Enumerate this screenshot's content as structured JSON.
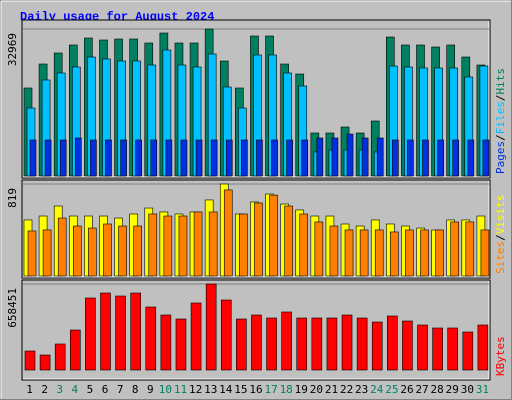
{
  "title": "Daily usage for August 2024",
  "legend_separator": "/",
  "chart_data": [
    {
      "type": "bar",
      "ylim": [
        0,
        32969
      ],
      "yticks": [
        32969
      ],
      "series": [
        {
          "name": "Pages",
          "color": "#0030e0",
          "values": [
            8074,
            8074,
            8074,
            8522,
            8074,
            8074,
            8074,
            8074,
            8074,
            8074,
            8074,
            8074,
            8074,
            8074,
            8074,
            8074,
            8074,
            8074,
            8074,
            8522,
            8522,
            9419,
            8522,
            8522,
            8074,
            8074,
            8074,
            8074,
            8074,
            8074,
            8074
          ]
        },
        {
          "name": "Files",
          "color": "#00c0ff",
          "values": [
            15250,
            21530,
            23100,
            24445,
            26688,
            26240,
            25791,
            25791,
            24894,
            28258,
            24894,
            24445,
            27361,
            19960,
            15250,
            27137,
            27137,
            23100,
            20184,
            5382,
            5831,
            5831,
            5831,
            5382,
            24670,
            24445,
            24221,
            24221,
            24221,
            22203,
            24670
          ]
        },
        {
          "name": "Hits",
          "color": "#008060",
          "values": [
            19736,
            25118,
            27585,
            29379,
            30949,
            30501,
            30725,
            30725,
            29828,
            32071,
            29828,
            29828,
            32969,
            25791,
            19736,
            31398,
            31398,
            25118,
            22876,
            9644,
            9644,
            10989,
            9644,
            12335,
            31174,
            29379,
            29379,
            28931,
            29379,
            26688,
            24894
          ]
        }
      ]
    },
    {
      "type": "bar",
      "ylim": [
        0,
        819
      ],
      "yticks": [
        819
      ],
      "series": [
        {
          "name": "Sites",
          "color": "#ff8000",
          "values": [
            401,
            410,
            516,
            445,
            427,
            463,
            445,
            445,
            552,
            534,
            534,
            570,
            570,
            766,
            552,
            650,
            720,
            623,
            552,
            481,
            445,
            410,
            410,
            410,
            392,
            410,
            410,
            410,
            481,
            481,
            410
          ]
        },
        {
          "name": "Visits",
          "color": "#ffff00",
          "values": [
            499,
            534,
            623,
            534,
            534,
            534,
            516,
            552,
            605,
            570,
            552,
            570,
            677,
            819,
            552,
            659,
            730,
            641,
            588,
            534,
            534,
            463,
            445,
            499,
            463,
            445,
            427,
            409,
            499,
            499,
            534
          ]
        }
      ]
    },
    {
      "type": "bar",
      "ylim": [
        0,
        658451
      ],
      "yticks": [
        658451
      ],
      "categories": [
        "1",
        "2",
        "3",
        "4",
        "5",
        "6",
        "7",
        "8",
        "9",
        "10",
        "11",
        "12",
        "13",
        "14",
        "15",
        "16",
        "17",
        "18",
        "19",
        "20",
        "21",
        "22",
        "23",
        "24",
        "25",
        "26",
        "27",
        "28",
        "29",
        "30",
        "31"
      ],
      "category_colors": [
        "#000000",
        "#000000",
        "#008060",
        "#008060",
        "#000000",
        "#000000",
        "#000000",
        "#000000",
        "#000000",
        "#008060",
        "#008060",
        "#000000",
        "#000000",
        "#000000",
        "#000000",
        "#000000",
        "#008060",
        "#008060",
        "#000000",
        "#000000",
        "#000000",
        "#000000",
        "#000000",
        "#008060",
        "#008060",
        "#000000",
        "#000000",
        "#000000",
        "#000000",
        "#000000",
        "#008060"
      ],
      "series": [
        {
          "name": "KBytes",
          "color": "#ff0000",
          "values": [
            145464,
            114840,
            199056,
            306240,
            551232,
            589512,
            566544,
            589512,
            482328,
            421080,
            390456,
            512952,
            658451,
            535920,
            390456,
            421080,
            398112,
            444048,
            398112,
            398112,
            398112,
            421080,
            398112,
            367488,
            413424,
            375144,
            344520,
            321552,
            321552,
            290928,
            344520
          ]
        }
      ]
    }
  ]
}
